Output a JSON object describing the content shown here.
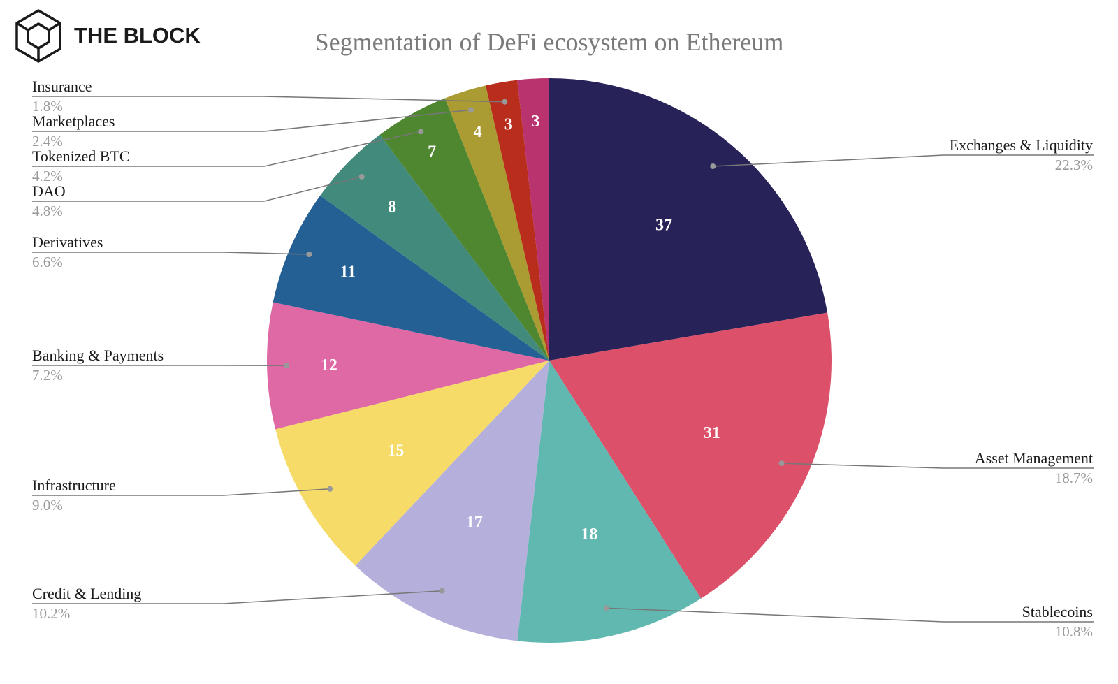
{
  "brand": {
    "name": "THE BLOCK",
    "logo_icon": "cube-logo-icon",
    "color": "#1a1a1a"
  },
  "chart_data": {
    "type": "pie",
    "title": "Segmentation of DeFi ecosystem on Ethereum",
    "start": "12 o'clock, clockwise",
    "slices": [
      {
        "label": "Exchanges & Liquidity",
        "value": 37,
        "percent": "22.3%",
        "color": "#272257",
        "label_side": "right"
      },
      {
        "label": "Asset Management",
        "value": 31,
        "percent": "18.7%",
        "color": "#dc5169",
        "label_side": "right"
      },
      {
        "label": "Stablecoins",
        "value": 18,
        "percent": "10.8%",
        "color": "#61b8b1",
        "label_side": "right"
      },
      {
        "label": "Credit & Lending",
        "value": 17,
        "percent": "10.2%",
        "color": "#b5b0db",
        "label_side": "left"
      },
      {
        "label": "Infrastructure",
        "value": 15,
        "percent": "9.0%",
        "color": "#f6db68",
        "label_side": "left"
      },
      {
        "label": "Banking & Payments",
        "value": 12,
        "percent": "7.2%",
        "color": "#de69a5",
        "label_side": "left"
      },
      {
        "label": "Derivatives",
        "value": 11,
        "percent": "6.6%",
        "color": "#256095",
        "label_side": "left"
      },
      {
        "label": "DAO",
        "value": 8,
        "percent": "4.8%",
        "color": "#418a7c",
        "label_side": "left"
      },
      {
        "label": "Tokenized BTC",
        "value": 7,
        "percent": "4.2%",
        "color": "#4f8731",
        "label_side": "left"
      },
      {
        "label": "Marketplaces",
        "value": 4,
        "percent": "2.4%",
        "color": "#ab9b33",
        "label_side": "left"
      },
      {
        "label": "Insurance",
        "value": 3,
        "percent": "1.8%",
        "color": "#b92d1d",
        "label_side": "left"
      },
      {
        "label": "",
        "value": 3,
        "percent": "",
        "color": "#b9336f",
        "label_side": "none"
      }
    ],
    "label_color": "#1a1a1a",
    "percent_color": "#9a9a9a",
    "leader_color": "#777777",
    "value_label_color": "#ffffff",
    "legend": "none"
  }
}
